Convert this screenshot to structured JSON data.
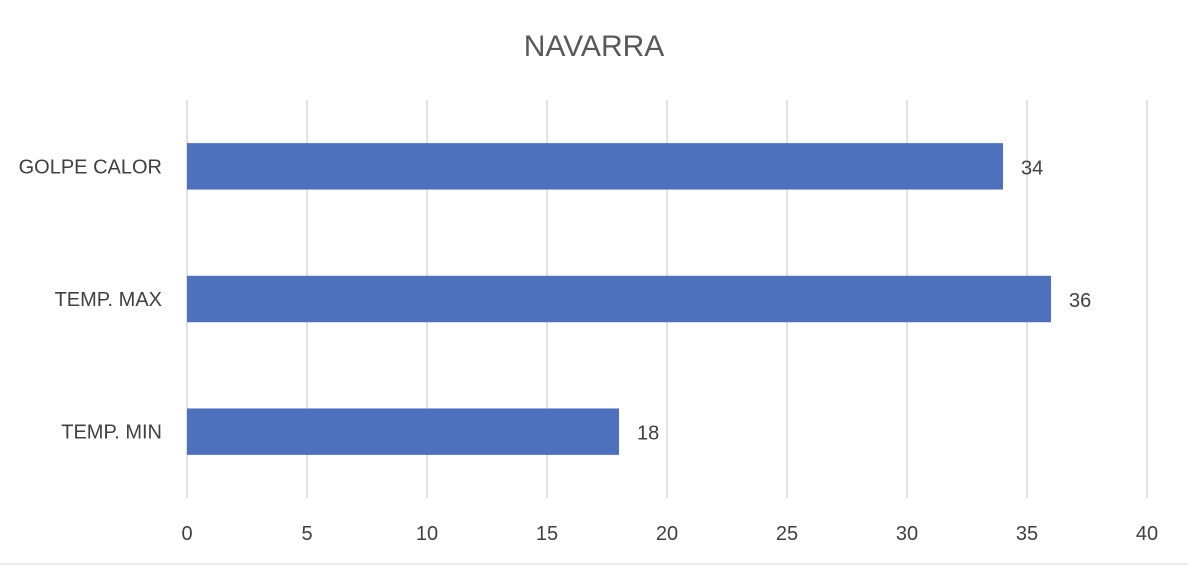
{
  "chart_data": {
    "type": "bar",
    "orientation": "horizontal",
    "title": "NAVARRA",
    "categories": [
      "GOLPE CALOR",
      "TEMP. MAX",
      "TEMP. MIN"
    ],
    "values": [
      34,
      36,
      18
    ],
    "data_labels": [
      "34",
      "36",
      "18"
    ],
    "xlim": [
      0,
      40
    ],
    "xticks": [
      0,
      5,
      10,
      15,
      20,
      25,
      30,
      35,
      40
    ],
    "xtick_labels": [
      "0",
      "5",
      "10",
      "15",
      "20",
      "25",
      "30",
      "35",
      "40"
    ],
    "xlabel": "",
    "ylabel": "",
    "grid": "vertical",
    "legend": "none",
    "bar_color": "#4e71be"
  }
}
